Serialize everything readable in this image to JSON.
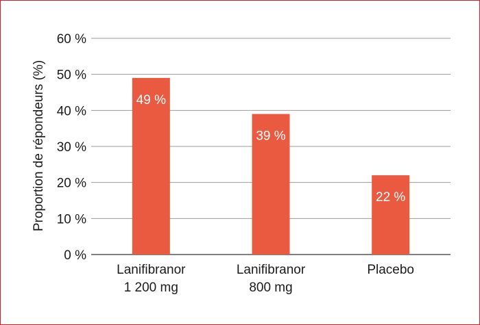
{
  "chart_data": {
    "type": "bar",
    "ylabel": "Proportion de répondeurs (%)",
    "ylim": [
      0,
      60
    ],
    "yticks": [
      0,
      10,
      20,
      30,
      40,
      50,
      60
    ],
    "ytick_labels": [
      "0 %",
      "10 %",
      "20 %",
      "30 %",
      "40 %",
      "50 %",
      "60 %"
    ],
    "grid": true,
    "categories": [
      {
        "lines": [
          "Lanifibranor",
          "1 200 mg"
        ]
      },
      {
        "lines": [
          "Lanifibranor",
          "800 mg"
        ]
      },
      {
        "lines": [
          "Placebo"
        ]
      }
    ],
    "values": [
      49,
      39,
      22
    ],
    "data_labels": [
      "49 %",
      "39 %",
      "22 %"
    ],
    "bar_color": "#e95a41",
    "border_color": "#d0202e"
  }
}
